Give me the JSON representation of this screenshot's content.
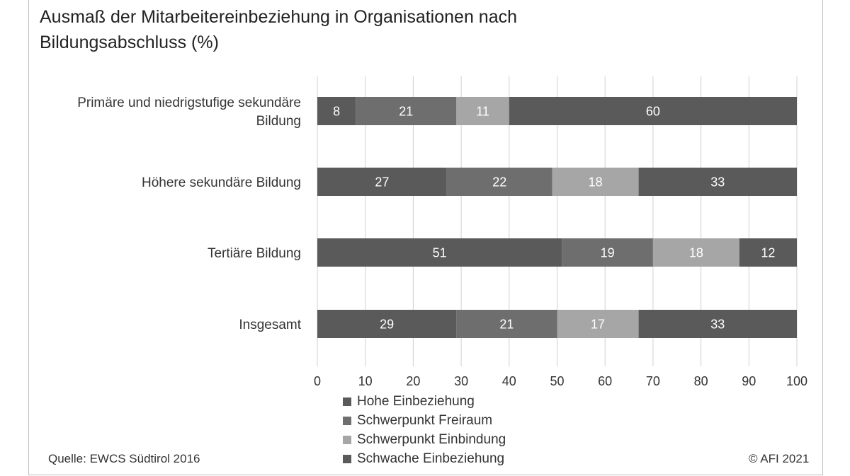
{
  "header": {
    "title_line1": "Ausmaß der Mitarbeitereinbeziehung in Organisationen nach",
    "title_line2": "Bildungsabschluss (%)"
  },
  "chart_data": {
    "type": "bar",
    "orientation": "horizontal",
    "stacked": true,
    "categories": [
      [
        "Primäre und niedrigstufige sekundäre",
        "Bildung"
      ],
      [
        "Höhere sekundäre Bildung"
      ],
      [
        "Tertiäre Bildung"
      ],
      [
        "Insgesamt"
      ]
    ],
    "series": [
      {
        "name": "Hohe Einbeziehung",
        "color": "#5a5a5a",
        "values": [
          8,
          27,
          51,
          29
        ]
      },
      {
        "name": "Schwerpunkt Freiraum",
        "color": "#6e6e6e",
        "values": [
          21,
          22,
          19,
          21
        ]
      },
      {
        "name": "Schwerpunkt Einbindung",
        "color": "#a6a6a6",
        "values": [
          11,
          18,
          18,
          17
        ]
      },
      {
        "name": "Schwache Einbeziehung",
        "color": "#5a5a5a",
        "values": [
          60,
          33,
          12,
          33
        ]
      }
    ],
    "xlim": [
      0,
      100
    ],
    "xticks": [
      "0",
      "10",
      "20",
      "30",
      "40",
      "50",
      "60",
      "70",
      "80",
      "90",
      "100"
    ],
    "grid": true,
    "legend_position": "bottom"
  },
  "footer": {
    "source": "Quelle: EWCS Südtirol 2016",
    "copyright": "© AFI 2021"
  }
}
